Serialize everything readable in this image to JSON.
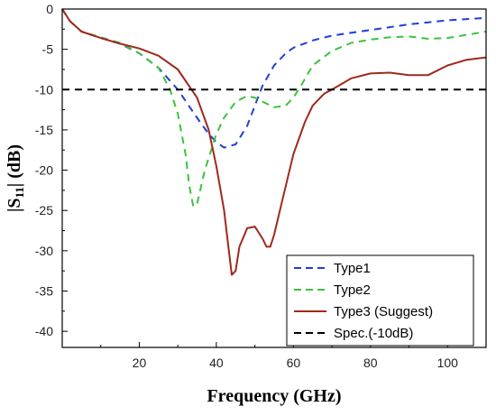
{
  "chart_data": {
    "type": "line",
    "title": "",
    "xlabel": "Frequency (GHz)",
    "ylabel_parts": [
      "|S",
      "11",
      "|  (dB)"
    ],
    "xlim": [
      0,
      110
    ],
    "ylim": [
      -42,
      0
    ],
    "x_ticks": [
      20,
      40,
      60,
      80,
      100
    ],
    "y_ticks": [
      0,
      -5,
      -10,
      -15,
      -20,
      -25,
      -30,
      -35,
      -40
    ],
    "grid": false,
    "legend_position": "bottom-right",
    "colors": {
      "type1": "#1f3fd6",
      "type2": "#3cc23c",
      "type3": "#a0281c",
      "spec": "#000000"
    },
    "series": [
      {
        "name": "Type1",
        "color": "#1f3fd6",
        "style": "dashed",
        "x": [
          0,
          2,
          5,
          10,
          15,
          20,
          25,
          30,
          35,
          38,
          40,
          42,
          45,
          48,
          50,
          52,
          55,
          58,
          60,
          65,
          70,
          80,
          90,
          100,
          110
        ],
        "y": [
          0,
          -1.5,
          -2.8,
          -3.6,
          -4.3,
          -5.5,
          -7.3,
          -10,
          -13.5,
          -15.5,
          -16.5,
          -17.2,
          -16.8,
          -14.5,
          -12,
          -9.5,
          -7,
          -5.5,
          -4.8,
          -3.9,
          -3.3,
          -2.6,
          -1.9,
          -1.4,
          -1.1
        ]
      },
      {
        "name": "Type2",
        "color": "#3cc23c",
        "style": "dashed",
        "x": [
          0,
          2,
          5,
          10,
          15,
          20,
          25,
          28,
          30,
          32,
          33,
          34,
          35,
          37,
          40,
          42,
          45,
          48,
          50,
          52,
          55,
          58,
          60,
          62,
          65,
          70,
          75,
          80,
          85,
          90,
          95,
          100,
          105,
          110
        ],
        "y": [
          0,
          -1.5,
          -2.8,
          -3.5,
          -4.2,
          -5.5,
          -7.3,
          -10,
          -13,
          -18,
          -22,
          -24.5,
          -24.2,
          -20,
          -15.5,
          -13.5,
          -11.5,
          -10.8,
          -11,
          -11.5,
          -12.2,
          -12,
          -11,
          -9.5,
          -7,
          -5.2,
          -4.2,
          -3.8,
          -3.5,
          -3.4,
          -3.7,
          -3.6,
          -3.2,
          -2.8
        ]
      },
      {
        "name": "Type3 (Suggest)",
        "color": "#a0281c",
        "style": "solid",
        "x": [
          0,
          2,
          5,
          10,
          15,
          20,
          25,
          30,
          35,
          38,
          40,
          42,
          43,
          44,
          45,
          46,
          48,
          50,
          52,
          53,
          54,
          55,
          57,
          60,
          63,
          65,
          68,
          70,
          75,
          80,
          85,
          90,
          95,
          100,
          105,
          110
        ],
        "y": [
          0,
          -1.5,
          -2.8,
          -3.6,
          -4.3,
          -4.9,
          -5.8,
          -7.5,
          -11,
          -15,
          -19.5,
          -25,
          -29,
          -33,
          -32.5,
          -29.5,
          -27.2,
          -27,
          -28.5,
          -29.5,
          -29.5,
          -28,
          -24,
          -18,
          -14,
          -12,
          -10.5,
          -10,
          -8.6,
          -8,
          -7.9,
          -8.2,
          -8.2,
          -7,
          -6.3,
          -6
        ]
      },
      {
        "name": "Spec.(-10dB)",
        "color": "#000000",
        "style": "dashed",
        "x": [
          0,
          110
        ],
        "y": [
          -10,
          -10
        ]
      }
    ]
  }
}
